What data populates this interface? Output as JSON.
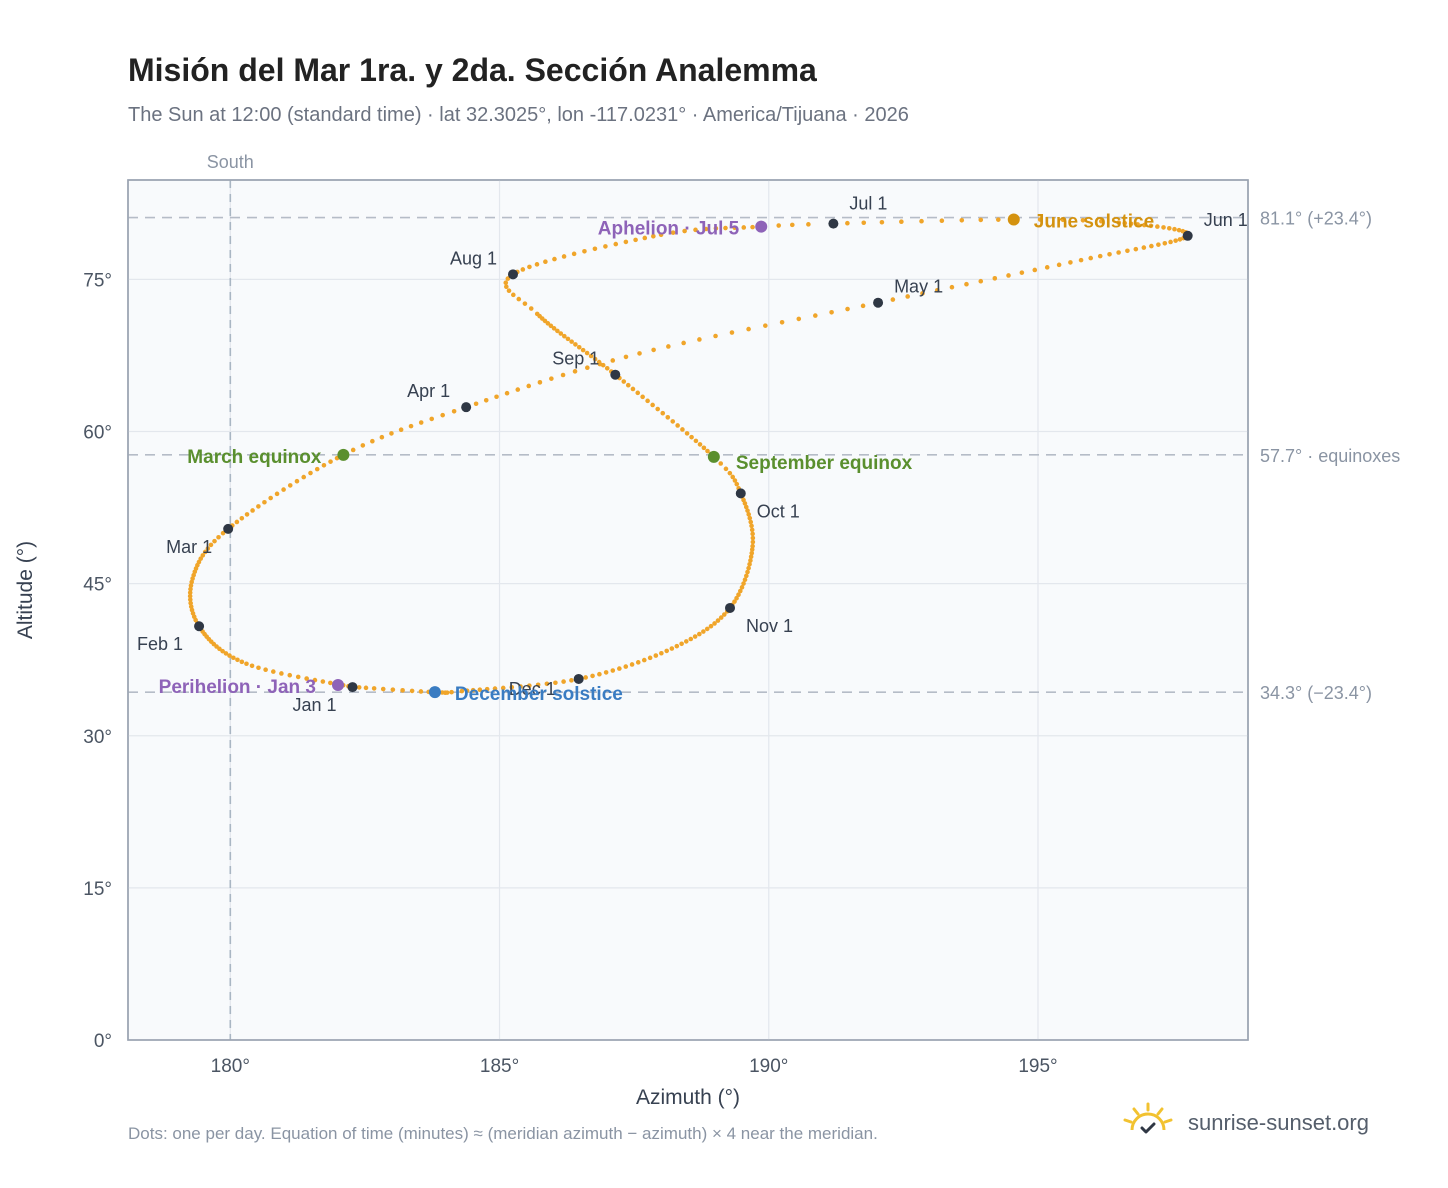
{
  "title": "Misión del Mar 1ra. y 2da. Sección Analemma",
  "subtitle": "The Sun at 12:00 (standard time) · lat 32.3025°, lon -117.0231° · America/Tijuana · 2026",
  "footnote": "Dots: one per day. Equation of time (minutes) ≈ (meridian azimuth − azimuth) × 4 near the meridian.",
  "brand": "sunrise-sunset.org",
  "colors": {
    "path": "#f0a52a",
    "month_marker": "#2f3744",
    "equinox": "#5a8f2e",
    "june_solstice": "#d4920f",
    "december_solstice": "#3a7cc2",
    "apsis": "#8e63b8",
    "plot_bg": "#f8fafc",
    "grid": "#e3e7ed",
    "ref_line": "#b5bcc7"
  },
  "chart_data": {
    "type": "scatter",
    "xlabel": "Azimuth (°)",
    "ylabel": "Altitude (°)",
    "xlim": [
      178.1,
      198.9
    ],
    "ylim": [
      0,
      84.8
    ],
    "xticks": [
      180,
      185,
      190,
      195
    ],
    "xtick_labels": [
      "180°",
      "185°",
      "190°",
      "195°"
    ],
    "yticks": [
      0,
      15,
      30,
      45,
      60,
      75
    ],
    "ytick_labels": [
      "0°",
      "15°",
      "30°",
      "45°",
      "60°",
      "75°"
    ],
    "grid": true,
    "south_line": {
      "x": 180,
      "label": "South"
    },
    "reference_lines": [
      {
        "y": 81.1,
        "label": "81.1° (+23.4°)"
      },
      {
        "y": 57.7,
        "label": "57.7° · equinoxes"
      },
      {
        "y": 34.3,
        "label": "34.3° (−23.4°)"
      }
    ],
    "path_knots": [
      [
        1,
        182.27,
        34.8
      ],
      [
        16,
        180.3,
        37.1
      ],
      [
        32,
        179.42,
        40.8
      ],
      [
        46,
        179.3,
        45.5
      ],
      [
        60,
        179.96,
        50.4
      ],
      [
        79,
        182.1,
        57.7
      ],
      [
        91,
        184.38,
        62.4
      ],
      [
        106,
        187.6,
        67.7
      ],
      [
        121,
        192.03,
        72.7
      ],
      [
        136,
        195.8,
        76.9
      ],
      [
        152,
        197.78,
        79.3
      ],
      [
        167,
        196.5,
        80.6
      ],
      [
        172,
        194.55,
        80.9
      ],
      [
        182,
        191.2,
        80.5
      ],
      [
        186,
        189.86,
        80.2
      ],
      [
        196,
        188.0,
        79.4
      ],
      [
        213,
        185.25,
        75.5
      ],
      [
        222,
        185.7,
        71.6
      ],
      [
        244,
        187.15,
        65.6
      ],
      [
        266,
        188.98,
        57.5
      ],
      [
        274,
        189.48,
        53.9
      ],
      [
        288,
        189.7,
        48.7
      ],
      [
        305,
        189.28,
        42.6
      ],
      [
        320,
        188.2,
        38.6
      ],
      [
        335,
        186.47,
        35.6
      ],
      [
        350,
        184.3,
        34.4
      ],
      [
        355,
        183.8,
        34.3
      ],
      [
        365,
        182.3,
        34.8
      ]
    ],
    "month_markers": [
      {
        "label": "Jan 1",
        "azimuth": 182.27,
        "altitude": 34.8
      },
      {
        "label": "Feb 1",
        "azimuth": 179.42,
        "altitude": 40.8
      },
      {
        "label": "Mar 1",
        "azimuth": 179.96,
        "altitude": 50.4
      },
      {
        "label": "Apr 1",
        "azimuth": 184.38,
        "altitude": 62.4
      },
      {
        "label": "May 1",
        "azimuth": 192.03,
        "altitude": 72.7
      },
      {
        "label": "Jun 1",
        "azimuth": 197.78,
        "altitude": 79.3
      },
      {
        "label": "Jul 1",
        "azimuth": 191.2,
        "altitude": 80.5
      },
      {
        "label": "Aug 1",
        "azimuth": 185.25,
        "altitude": 75.5
      },
      {
        "label": "Sep 1",
        "azimuth": 187.15,
        "altitude": 65.6
      },
      {
        "label": "Oct 1",
        "azimuth": 189.48,
        "altitude": 53.9
      },
      {
        "label": "Nov 1",
        "azimuth": 189.28,
        "altitude": 42.6
      },
      {
        "label": "Dec 1",
        "azimuth": 186.47,
        "altitude": 35.6
      }
    ],
    "events": [
      {
        "label": "March equinox",
        "azimuth": 182.1,
        "altitude": 57.7,
        "kind": "equinox"
      },
      {
        "label": "September equinox",
        "azimuth": 188.98,
        "altitude": 57.5,
        "kind": "equinox"
      },
      {
        "label": "June solstice",
        "azimuth": 194.55,
        "altitude": 80.9,
        "kind": "june_solstice"
      },
      {
        "label": "December solstice",
        "azimuth": 183.8,
        "altitude": 34.3,
        "kind": "december_solstice"
      },
      {
        "label": "Perihelion · Jan 3",
        "azimuth": 182.0,
        "altitude": 35.0,
        "kind": "apsis"
      },
      {
        "label": "Aphelion · Jul 5",
        "azimuth": 189.86,
        "altitude": 80.2,
        "kind": "apsis"
      }
    ]
  }
}
